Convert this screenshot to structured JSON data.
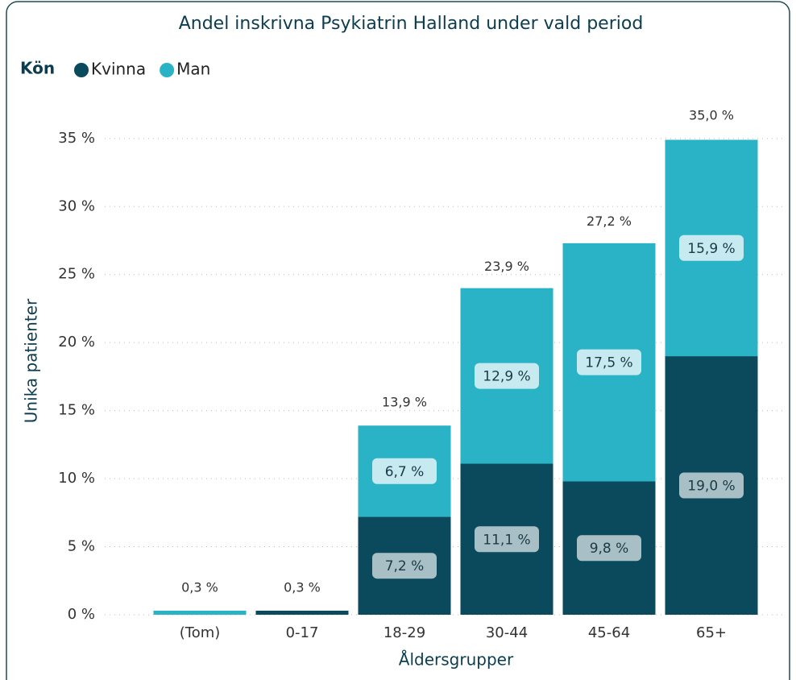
{
  "chart_data": {
    "type": "stacked_bar",
    "title": "Andel inskrivna Psykiatrin Halland under vald period",
    "legend_title": "Kön",
    "legend_position": "top-left",
    "xlabel": "Åldersgrupper",
    "ylabel": "Unika patienter",
    "categories": [
      "(Tom)",
      "0-17",
      "18-29",
      "30-44",
      "45-64",
      "65+"
    ],
    "series": [
      {
        "name": "Kvinna",
        "color": "#0b4a5c",
        "values": [
          null,
          0.3,
          7.2,
          11.1,
          9.8,
          19.0
        ],
        "value_labels": [
          null,
          null,
          "7,2 %",
          "11,1 %",
          "9,8 %",
          "19,0 %"
        ]
      },
      {
        "name": "Man",
        "color": "#2ab3c6",
        "values": [
          0.3,
          null,
          6.7,
          12.9,
          17.5,
          15.9
        ],
        "value_labels": [
          null,
          null,
          "6,7 %",
          "12,9 %",
          "17,5 %",
          "15,9 %"
        ]
      }
    ],
    "totals": [
      0.3,
      0.3,
      13.9,
      23.9,
      27.2,
      35.0
    ],
    "total_labels": [
      "0,3 %",
      "0,3 %",
      "13,9 %",
      "23,9 %",
      "27,2 %",
      "35,0 %"
    ],
    "ylim": [
      0,
      37.5
    ],
    "yticks": [
      {
        "value": 0,
        "label": "0 %"
      },
      {
        "value": 5,
        "label": "5 %"
      },
      {
        "value": 10,
        "label": "10 %"
      },
      {
        "value": 15,
        "label": "15 %"
      },
      {
        "value": 20,
        "label": "20 %"
      },
      {
        "value": 25,
        "label": "25 %"
      },
      {
        "value": 30,
        "label": "30 %"
      },
      {
        "value": 35,
        "label": "35 %"
      }
    ],
    "grid": true
  }
}
